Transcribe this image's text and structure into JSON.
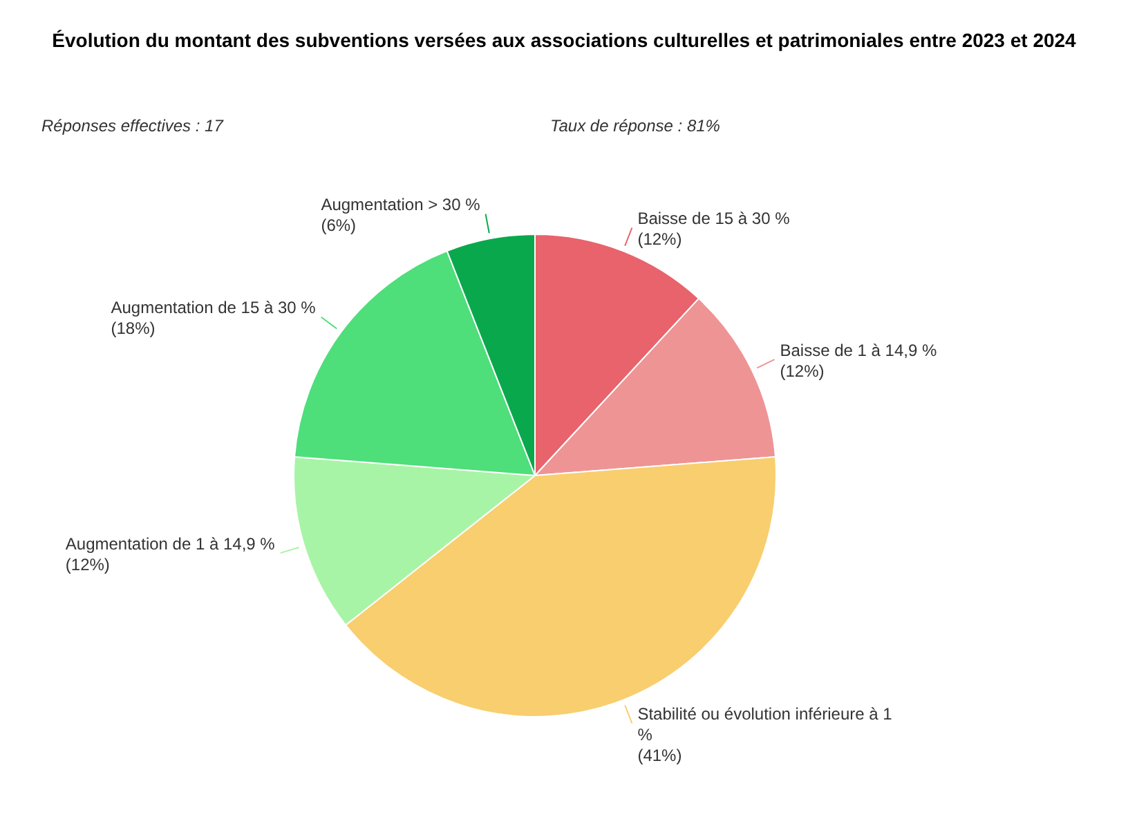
{
  "chart_data": {
    "type": "pie",
    "title": "Évolution du montant des subventions versées aux associations culturelles et patrimoniales entre 2023 et 2024",
    "annotations": [
      "Réponses effectives : 17",
      "Taux de réponse : 81%"
    ],
    "categories": [
      "Baisse de 15 à 30 %",
      "Baisse de 1 à 14,9 %",
      "Stabilité ou évolution inférieure à 1 %",
      "Augmentation de 1 à 14,9 %",
      "Augmentation de 15 à 30 %",
      "Augmentation > 30 %"
    ],
    "values": [
      12,
      12,
      41,
      12,
      18,
      6
    ],
    "value_labels": [
      "(12%)",
      "(12%)",
      "(41%)",
      "(12%)",
      "(18%)",
      "(6%)"
    ],
    "colors": [
      "#e8636b",
      "#ee9495",
      "#f8ce6e",
      "#a8f4a6",
      "#4ede7a",
      "#0aa84c"
    ],
    "legend": false
  }
}
